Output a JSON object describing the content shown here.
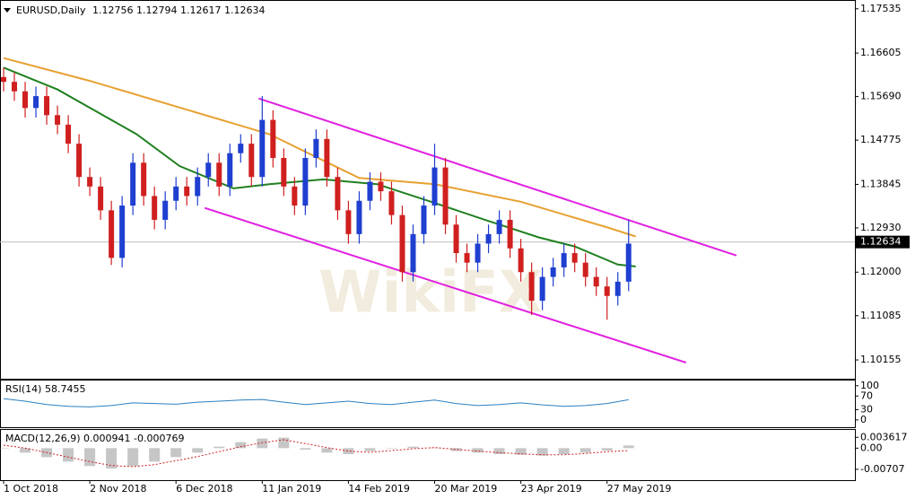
{
  "chart_data": [
    {
      "type": "candlestick",
      "symbol": "EURUSD,Daily",
      "header_ohlc": [
        1.12756,
        1.12794,
        1.12617,
        1.12634
      ],
      "last_price": 1.12634,
      "watermark": "WikiFX",
      "xlim": [
        -1,
        237
      ],
      "xticks": [
        {
          "value": 0,
          "label": "1 Oct 2018"
        },
        {
          "value": 24,
          "label": "2 Nov 2018"
        },
        {
          "value": 48,
          "label": "6 Dec 2018"
        },
        {
          "value": 72,
          "label": "11 Jan 2019"
        },
        {
          "value": 96,
          "label": "14 Feb 2019"
        },
        {
          "value": 120,
          "label": "20 Mar 2019"
        },
        {
          "value": 144,
          "label": "23 Apr 2019"
        },
        {
          "value": 168,
          "label": "27 May 2019"
        }
      ],
      "ylim": [
        1.0976,
        1.1772
      ],
      "yticks": [
        1.17535,
        1.16605,
        {
          "value": 1.1569,
          "label": "1.15690"
        },
        1.14775,
        1.13845,
        {
          "value": 1.1293,
          "label": "1.12930"
        },
        {
          "value": 1.12,
          "label": "1.12000"
        },
        1.11085,
        1.10155
      ],
      "up_color": "#1f3fd0",
      "down_color": "#d01f1f",
      "x": [
        0,
        3,
        6,
        9,
        12,
        15,
        18,
        21,
        24,
        27,
        30,
        33,
        36,
        39,
        42,
        45,
        48,
        51,
        54,
        57,
        60,
        63,
        66,
        69,
        72,
        75,
        78,
        81,
        84,
        87,
        90,
        93,
        96,
        99,
        102,
        105,
        108,
        111,
        114,
        117,
        120,
        123,
        126,
        129,
        132,
        135,
        138,
        141,
        144,
        147,
        150,
        153,
        156,
        159,
        162,
        165,
        168,
        171,
        174
      ],
      "open": [
        1.161,
        1.16,
        1.158,
        1.1545,
        1.157,
        1.153,
        1.151,
        1.147,
        1.14,
        1.138,
        1.133,
        1.123,
        1.134,
        1.143,
        1.136,
        1.131,
        1.135,
        1.138,
        1.136,
        1.14,
        1.143,
        1.138,
        1.145,
        1.147,
        1.14,
        1.152,
        1.144,
        1.138,
        1.134,
        1.144,
        1.148,
        1.14,
        1.133,
        1.128,
        1.135,
        1.139,
        1.137,
        1.132,
        1.12,
        1.128,
        1.134,
        1.142,
        1.13,
        1.124,
        1.122,
        1.126,
        1.128,
        1.131,
        1.125,
        1.12,
        1.114,
        1.119,
        1.121,
        1.124,
        1.122,
        1.119,
        1.117,
        1.115,
        1.118
      ],
      "high": [
        1.163,
        1.162,
        1.16,
        1.159,
        1.159,
        1.155,
        1.153,
        1.149,
        1.142,
        1.14,
        1.135,
        1.136,
        1.145,
        1.145,
        1.138,
        1.137,
        1.14,
        1.14,
        1.142,
        1.145,
        1.145,
        1.147,
        1.149,
        1.149,
        1.157,
        1.154,
        1.146,
        1.14,
        1.146,
        1.15,
        1.15,
        1.142,
        1.135,
        1.137,
        1.141,
        1.141,
        1.139,
        1.134,
        1.13,
        1.136,
        1.147,
        1.144,
        1.132,
        1.126,
        1.128,
        1.13,
        1.133,
        1.133,
        1.127,
        1.122,
        1.121,
        1.123,
        1.126,
        1.126,
        1.124,
        1.121,
        1.119,
        1.12,
        1.131
      ],
      "low": [
        1.158,
        1.156,
        1.1525,
        1.1525,
        1.151,
        1.149,
        1.145,
        1.138,
        1.136,
        1.131,
        1.1215,
        1.121,
        1.132,
        1.134,
        1.129,
        1.129,
        1.133,
        1.134,
        1.134,
        1.138,
        1.136,
        1.136,
        1.143,
        1.138,
        1.138,
        1.142,
        1.136,
        1.132,
        1.132,
        1.142,
        1.138,
        1.131,
        1.126,
        1.126,
        1.133,
        1.135,
        1.13,
        1.118,
        1.118,
        1.126,
        1.132,
        1.128,
        1.122,
        1.12,
        1.12,
        1.124,
        1.126,
        1.123,
        1.118,
        1.111,
        1.112,
        1.117,
        1.119,
        1.12,
        1.117,
        1.115,
        1.11,
        1.113,
        1.116
      ],
      "close": [
        1.16,
        1.158,
        1.1545,
        1.157,
        1.153,
        1.151,
        1.147,
        1.14,
        1.138,
        1.133,
        1.123,
        1.134,
        1.143,
        1.136,
        1.131,
        1.135,
        1.138,
        1.136,
        1.14,
        1.143,
        1.138,
        1.145,
        1.147,
        1.14,
        1.152,
        1.144,
        1.138,
        1.134,
        1.144,
        1.148,
        1.14,
        1.133,
        1.128,
        1.135,
        1.139,
        1.137,
        1.132,
        1.12,
        1.128,
        1.134,
        1.142,
        1.13,
        1.124,
        1.122,
        1.126,
        1.128,
        1.131,
        1.125,
        1.12,
        1.114,
        1.119,
        1.121,
        1.124,
        1.122,
        1.119,
        1.117,
        1.115,
        1.118,
        1.126
      ],
      "series": [
        {
          "color": "#e8a030",
          "x": [
            0,
            24,
            49,
            74,
            99,
            120,
            144,
            169,
            176
          ],
          "values": [
            1.165,
            1.1602,
            1.1546,
            1.149,
            1.1398,
            1.1385,
            1.1348,
            1.1292,
            1.1275
          ]
        },
        {
          "color": "#208020",
          "x": [
            0,
            15,
            37,
            49,
            64,
            74,
            89,
            104,
            119,
            134,
            149,
            159,
            171,
            176
          ],
          "values": [
            1.163,
            1.1584,
            1.149,
            1.1423,
            1.1376,
            1.1385,
            1.1395,
            1.1385,
            1.1348,
            1.131,
            1.1273,
            1.1254,
            1.1216,
            1.1212
          ]
        }
      ],
      "lines": [
        {
          "color": "#e020e0",
          "x": [
            71,
            204
          ],
          "values": [
            1.1565,
            1.1235
          ]
        },
        {
          "color": "#e020e0",
          "x": [
            56,
            190
          ],
          "values": [
            1.1335,
            1.101
          ]
        }
      ]
    },
    {
      "type": "line",
      "title": "RSI(14)",
      "last_value": 58.7455,
      "color": "#2a7fc0",
      "xlim": [
        -1,
        237
      ],
      "ylim": [
        -24,
        118
      ],
      "yticks": [
        100,
        70,
        30,
        0
      ],
      "x": [
        0,
        6,
        12,
        18,
        24,
        30,
        36,
        42,
        48,
        54,
        60,
        66,
        72,
        78,
        84,
        90,
        96,
        102,
        108,
        114,
        120,
        126,
        132,
        138,
        144,
        150,
        156,
        162,
        168,
        174
      ],
      "values": [
        62,
        55,
        45,
        40,
        38,
        42,
        50,
        48,
        46,
        52,
        55,
        58,
        60,
        52,
        45,
        50,
        55,
        48,
        45,
        52,
        58,
        48,
        42,
        45,
        50,
        44,
        40,
        42,
        48,
        59
      ]
    },
    {
      "type": "macd",
      "title": "MACD(12,26,9)",
      "last_values": [
        0.000941,
        -0.000769
      ],
      "color": "#a0a0a0",
      "signal_color": "#d02020",
      "xlim": [
        -1,
        237
      ],
      "ylim": [
        -0.0107,
        0.0064
      ],
      "yticks": [
        0.003617,
        {
          "value": 0,
          "label": "0.00"
        },
        -0.00707
      ],
      "x": [
        0,
        6,
        12,
        18,
        24,
        30,
        36,
        42,
        48,
        54,
        60,
        66,
        72,
        78,
        84,
        90,
        96,
        102,
        108,
        114,
        120,
        126,
        132,
        138,
        144,
        150,
        156,
        162,
        168,
        174
      ],
      "values": [
        0.0,
        -0.0015,
        -0.003,
        -0.0045,
        -0.006,
        -0.0068,
        -0.006,
        -0.0045,
        -0.003,
        -0.0015,
        0.0005,
        0.002,
        0.0032,
        0.0035,
        -0.0005,
        -0.0015,
        -0.002,
        -0.001,
        0.0,
        0.0005,
        0.0002,
        -0.001,
        -0.0015,
        -0.002,
        -0.0022,
        -0.0025,
        -0.002,
        -0.0015,
        -0.0008,
        0.0009
      ],
      "signal": [
        0.001,
        0.0,
        -0.0015,
        -0.003,
        -0.0045,
        -0.0058,
        -0.0062,
        -0.0055,
        -0.0042,
        -0.0028,
        -0.0012,
        0.0005,
        0.0018,
        0.0028,
        0.0015,
        0.0002,
        -0.001,
        -0.0014,
        -0.0008,
        -0.0002,
        0.0002,
        -0.0004,
        -0.001,
        -0.0015,
        -0.0019,
        -0.0022,
        -0.0022,
        -0.0018,
        -0.0012,
        -0.0008
      ]
    }
  ]
}
